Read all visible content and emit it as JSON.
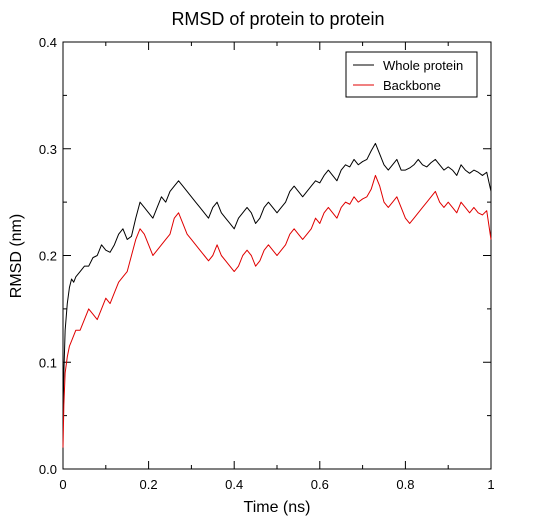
{
  "chart_data": {
    "type": "line",
    "title": "RMSD of protein to protein",
    "xlabel": "Time (ns)",
    "ylabel": "RMSD (nm)",
    "xlim": [
      0,
      1
    ],
    "ylim": [
      0,
      0.4
    ],
    "xticks": [
      "0",
      "0.2",
      "0.4",
      "0.6",
      "0.8",
      "1"
    ],
    "yticks": [
      "0.0",
      "0.1",
      "0.2",
      "0.3",
      "0.4"
    ],
    "grid": false,
    "legend_position": "top-right",
    "series": [
      {
        "name": "Whole protein",
        "color": "#000000",
        "x": [
          0,
          0.002,
          0.005,
          0.01,
          0.015,
          0.02,
          0.025,
          0.03,
          0.04,
          0.05,
          0.06,
          0.07,
          0.08,
          0.09,
          0.1,
          0.11,
          0.12,
          0.13,
          0.14,
          0.15,
          0.16,
          0.17,
          0.18,
          0.19,
          0.2,
          0.21,
          0.22,
          0.23,
          0.24,
          0.25,
          0.26,
          0.27,
          0.28,
          0.29,
          0.3,
          0.31,
          0.32,
          0.33,
          0.34,
          0.35,
          0.36,
          0.37,
          0.38,
          0.39,
          0.4,
          0.41,
          0.42,
          0.43,
          0.44,
          0.45,
          0.46,
          0.47,
          0.48,
          0.49,
          0.5,
          0.51,
          0.52,
          0.53,
          0.54,
          0.55,
          0.56,
          0.57,
          0.58,
          0.59,
          0.6,
          0.61,
          0.62,
          0.63,
          0.64,
          0.65,
          0.66,
          0.67,
          0.68,
          0.69,
          0.7,
          0.71,
          0.72,
          0.73,
          0.74,
          0.75,
          0.76,
          0.77,
          0.78,
          0.79,
          0.8,
          0.81,
          0.82,
          0.83,
          0.84,
          0.85,
          0.86,
          0.87,
          0.88,
          0.89,
          0.9,
          0.91,
          0.92,
          0.93,
          0.94,
          0.95,
          0.96,
          0.97,
          0.98,
          0.99,
          1.0
        ],
        "y": [
          0.05,
          0.09,
          0.13,
          0.155,
          0.17,
          0.178,
          0.175,
          0.18,
          0.185,
          0.19,
          0.19,
          0.198,
          0.2,
          0.21,
          0.205,
          0.203,
          0.21,
          0.22,
          0.225,
          0.215,
          0.218,
          0.235,
          0.25,
          0.245,
          0.24,
          0.235,
          0.245,
          0.255,
          0.25,
          0.26,
          0.265,
          0.27,
          0.265,
          0.26,
          0.255,
          0.25,
          0.245,
          0.24,
          0.235,
          0.245,
          0.25,
          0.24,
          0.235,
          0.23,
          0.225,
          0.235,
          0.24,
          0.245,
          0.24,
          0.23,
          0.235,
          0.245,
          0.25,
          0.245,
          0.24,
          0.245,
          0.25,
          0.26,
          0.265,
          0.26,
          0.255,
          0.26,
          0.265,
          0.27,
          0.268,
          0.275,
          0.28,
          0.275,
          0.27,
          0.28,
          0.285,
          0.283,
          0.29,
          0.285,
          0.288,
          0.29,
          0.298,
          0.305,
          0.295,
          0.285,
          0.28,
          0.285,
          0.29,
          0.28,
          0.28,
          0.282,
          0.285,
          0.29,
          0.285,
          0.283,
          0.287,
          0.29,
          0.285,
          0.28,
          0.283,
          0.28,
          0.275,
          0.285,
          0.28,
          0.277,
          0.28,
          0.278,
          0.275,
          0.278,
          0.26
        ]
      },
      {
        "name": "Backbone",
        "color": "#e00000",
        "x": [
          0,
          0.002,
          0.005,
          0.01,
          0.015,
          0.02,
          0.025,
          0.03,
          0.04,
          0.05,
          0.06,
          0.07,
          0.08,
          0.09,
          0.1,
          0.11,
          0.12,
          0.13,
          0.14,
          0.15,
          0.16,
          0.17,
          0.18,
          0.19,
          0.2,
          0.21,
          0.22,
          0.23,
          0.24,
          0.25,
          0.26,
          0.27,
          0.28,
          0.29,
          0.3,
          0.31,
          0.32,
          0.33,
          0.34,
          0.35,
          0.36,
          0.37,
          0.38,
          0.39,
          0.4,
          0.41,
          0.42,
          0.43,
          0.44,
          0.45,
          0.46,
          0.47,
          0.48,
          0.49,
          0.5,
          0.51,
          0.52,
          0.53,
          0.54,
          0.55,
          0.56,
          0.57,
          0.58,
          0.59,
          0.6,
          0.61,
          0.62,
          0.63,
          0.64,
          0.65,
          0.66,
          0.67,
          0.68,
          0.69,
          0.7,
          0.71,
          0.72,
          0.73,
          0.74,
          0.75,
          0.76,
          0.77,
          0.78,
          0.79,
          0.8,
          0.81,
          0.82,
          0.83,
          0.84,
          0.85,
          0.86,
          0.87,
          0.88,
          0.89,
          0.9,
          0.91,
          0.92,
          0.93,
          0.94,
          0.95,
          0.96,
          0.97,
          0.98,
          0.99,
          1.0
        ],
        "y": [
          0.02,
          0.06,
          0.09,
          0.105,
          0.115,
          0.12,
          0.125,
          0.13,
          0.13,
          0.14,
          0.15,
          0.145,
          0.14,
          0.15,
          0.16,
          0.155,
          0.165,
          0.175,
          0.18,
          0.185,
          0.2,
          0.215,
          0.225,
          0.22,
          0.21,
          0.2,
          0.205,
          0.21,
          0.215,
          0.22,
          0.235,
          0.24,
          0.23,
          0.22,
          0.215,
          0.21,
          0.205,
          0.2,
          0.195,
          0.2,
          0.21,
          0.2,
          0.195,
          0.19,
          0.185,
          0.19,
          0.2,
          0.205,
          0.2,
          0.19,
          0.195,
          0.205,
          0.21,
          0.205,
          0.2,
          0.205,
          0.21,
          0.22,
          0.225,
          0.22,
          0.215,
          0.22,
          0.225,
          0.235,
          0.23,
          0.24,
          0.245,
          0.24,
          0.235,
          0.245,
          0.25,
          0.248,
          0.255,
          0.25,
          0.253,
          0.255,
          0.262,
          0.275,
          0.265,
          0.25,
          0.245,
          0.25,
          0.255,
          0.245,
          0.235,
          0.23,
          0.235,
          0.24,
          0.245,
          0.25,
          0.255,
          0.26,
          0.25,
          0.245,
          0.25,
          0.245,
          0.24,
          0.25,
          0.245,
          0.24,
          0.245,
          0.24,
          0.238,
          0.242,
          0.215
        ]
      }
    ]
  }
}
